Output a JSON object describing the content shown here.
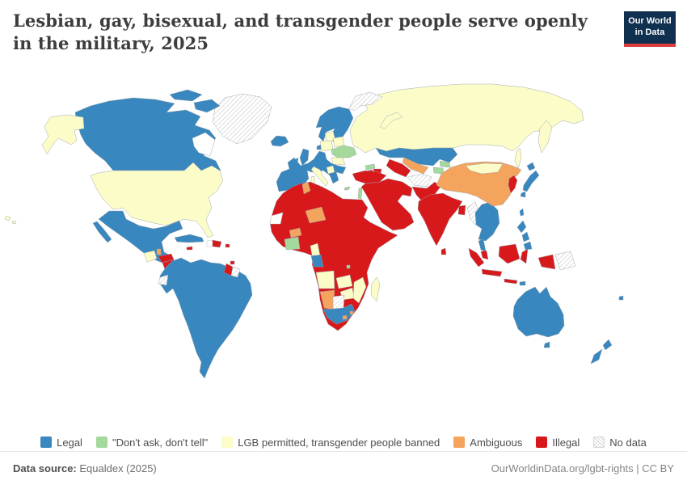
{
  "header": {
    "title": "Lesbian, gay, bisexual, and transgender people serve openly in the military, 2025",
    "logo": {
      "line1": "Our World",
      "line2": "in Data",
      "bg_color": "#10304f",
      "accent_color": "#dc3e40"
    }
  },
  "legend": {
    "items": [
      {
        "id": "legal",
        "label": "Legal",
        "color": "#3887be"
      },
      {
        "id": "dadt",
        "label": "\"Don't ask, don't tell\"",
        "color": "#a3d99b"
      },
      {
        "id": "lgb",
        "label": "LGB permitted, transgender people banned",
        "color": "#fbfcc8"
      },
      {
        "id": "ambiguous",
        "label": "Ambiguous",
        "color": "#f4a45c"
      },
      {
        "id": "illegal",
        "label": "Illegal",
        "color": "#d7191c"
      },
      {
        "id": "no_data",
        "label": "No data",
        "pattern": "hatch"
      }
    ]
  },
  "footer": {
    "source_label": "Data source:",
    "source_value": " Equaldex (2025)",
    "right_text": "OurWorldinData.org/lgbt-rights | CC BY"
  },
  "chart_data": {
    "type": "choropleth_map",
    "title": "Lesbian, gay, bisexual, and transgender people serve openly in the military",
    "year": 2025,
    "categories": [
      "legal",
      "dadt",
      "lgb",
      "ambiguous",
      "illegal",
      "no_data",
      "none"
    ],
    "none_fill": "#ffffff",
    "country_values": {
      "canada": "legal",
      "usa": "lgb",
      "greenland": "no_data",
      "mexico": "legal",
      "guatemala": "lgb",
      "belize": "ambiguous",
      "honduras": "illegal",
      "nicaragua": "illegal",
      "costa-rica": "none",
      "panama": "none",
      "cuba": "legal",
      "jamaica": "illegal",
      "haiti": "none",
      "dominican-republic": "illegal",
      "puerto-rico": "illegal",
      "trinidad": "illegal",
      "south-america": "legal",
      "guyana": "illegal",
      "suriname": "no_data",
      "ecuador": "no_data",
      "iceland": "legal",
      "uk": "legal",
      "ireland": "legal",
      "scandinavia": "legal",
      "denmark": "legal",
      "europe-west": "legal",
      "italy": "lgb",
      "poland": "lgb",
      "baltics": "lgb",
      "belarus": "lgb",
      "ukraine": "dadt",
      "romania": "lgb",
      "balkans-west": "lgb",
      "cyprus": "dadt",
      "russia": "lgb",
      "svalbard": "no_data",
      "kazakhstan": "legal",
      "uzbekistan": "ambiguous",
      "turkmenistan": "illegal",
      "kyrgyzstan": "dadt",
      "tajikistan": "dadt",
      "afghanistan": "no_data",
      "pakistan": "illegal",
      "georgia": "dadt",
      "armenia": "illegal",
      "azerbaijan": "illegal",
      "turkey": "illegal",
      "middle-east": "illegal",
      "israel": "dadt",
      "africa-mainland": "illegal",
      "western-sahara": "none",
      "tunisia": "ambiguous",
      "niger": "ambiguous",
      "burkina-faso": "ambiguous",
      "ghana-cotedivoire": "dadt",
      "cameroon": "lgb",
      "gabon-congo": "legal",
      "angola": "lgb",
      "zambia": "lgb",
      "zimbabwe": "lgb",
      "mozambique": "lgb",
      "namibia": "ambiguous",
      "botswana": "no_data",
      "south-africa": "legal",
      "lesotho": "ambiguous",
      "eswatini": "ambiguous",
      "madagascar": "lgb",
      "rwanda": "dadt",
      "india": "illegal",
      "sri-lanka": "illegal",
      "bangladesh": "illegal",
      "myanmar": "no_data",
      "indochina": "legal",
      "malaysia": "illegal",
      "indonesia": "illegal",
      "timor-leste": "legal",
      "papua-new-guinea": "no_data",
      "philippines": "legal",
      "taiwan": "legal",
      "china": "ambiguous",
      "mongolia": "lgb",
      "korea": "illegal",
      "japan": "legal",
      "australia": "legal",
      "new-zealand": "legal",
      "fiji": "legal"
    }
  }
}
